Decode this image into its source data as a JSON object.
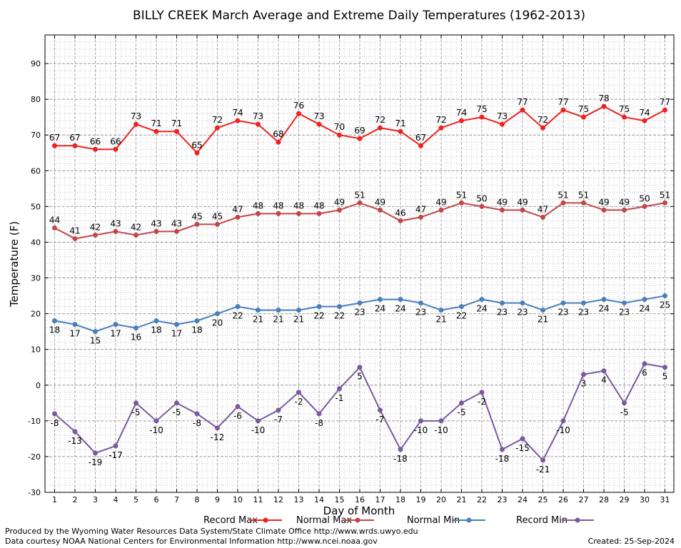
{
  "chart_data": {
    "type": "line",
    "title": "BILLY CREEK March Average and Extreme Daily Temperatures (1962-2013)",
    "xlabel": "Day of Month",
    "ylabel": "Temperature (F)",
    "ylim": [
      -30,
      98
    ],
    "yticks": [
      -30,
      -20,
      -10,
      0,
      10,
      20,
      30,
      40,
      50,
      60,
      70,
      80,
      90
    ],
    "x": [
      1,
      2,
      3,
      4,
      5,
      6,
      7,
      8,
      9,
      10,
      11,
      12,
      13,
      14,
      15,
      16,
      17,
      18,
      19,
      20,
      21,
      22,
      23,
      24,
      25,
      26,
      27,
      28,
      29,
      30,
      31
    ],
    "grid": true,
    "legend_placement": "bottom",
    "series": [
      {
        "name": "Record Max",
        "color": "#ee2222",
        "label_pos": "above",
        "values": [
          67,
          67,
          66,
          66,
          73,
          71,
          71,
          65,
          72,
          74,
          73,
          68,
          76,
          73,
          70,
          69,
          72,
          71,
          67,
          72,
          74,
          75,
          73,
          77,
          72,
          77,
          75,
          78,
          75,
          74,
          77
        ]
      },
      {
        "name": "Normal Max",
        "color": "#c04848",
        "label_pos": "above",
        "values": [
          44,
          41,
          42,
          43,
          42,
          43,
          43,
          45,
          45,
          47,
          48,
          48,
          48,
          48,
          49,
          51,
          49,
          46,
          47,
          49,
          51,
          50,
          49,
          49,
          47,
          51,
          51,
          49,
          49,
          50,
          51
        ]
      },
      {
        "name": "Normal Min",
        "color": "#4a7fba",
        "label_pos": "below",
        "values": [
          18,
          17,
          15,
          17,
          16,
          18,
          17,
          18,
          20,
          22,
          21,
          21,
          21,
          22,
          22,
          23,
          24,
          24,
          23,
          21,
          22,
          24,
          23,
          23,
          21,
          23,
          23,
          24,
          23,
          24,
          25
        ]
      },
      {
        "name": "Record Min",
        "color": "#7a5a9e",
        "label_pos": "below",
        "values": [
          -8,
          -13,
          -19,
          -17,
          -5,
          -10,
          -5,
          -8,
          -12,
          -6,
          -10,
          -7,
          -2,
          -8,
          -1,
          5,
          -7,
          -18,
          -10,
          -10,
          -5,
          -2,
          -18,
          -15,
          -21,
          -10,
          3,
          4,
          -5,
          6,
          5
        ]
      }
    ]
  },
  "footer": {
    "produced_by": "Produced by the Wyoming Water Resources Data System/State Climate Office http://www.wrds.uwyo.edu",
    "courtesy": "Data courtesy NOAA National Centers for Environmental Information http://www.ncei.noaa.gov",
    "created": "Created:  25-Sep-2024"
  }
}
